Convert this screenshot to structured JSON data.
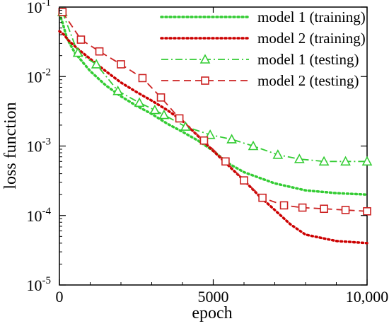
{
  "chart_data": {
    "type": "line",
    "xlabel": "epoch",
    "ylabel": "loss function",
    "xlim": [
      0,
      10000
    ],
    "ylim": [
      1e-05,
      0.1
    ],
    "yscale": "log",
    "x_ticks": [
      {
        "value": 0,
        "label": "0"
      },
      {
        "value": 5000,
        "label": "5000"
      },
      {
        "value": 10000,
        "label": "10,000"
      }
    ],
    "y_ticks": [
      {
        "value": 1e-05,
        "base": "10",
        "exp": "-5"
      },
      {
        "value": 0.0001,
        "base": "10",
        "exp": "-4"
      },
      {
        "value": 0.001,
        "base": "10",
        "exp": "-3"
      },
      {
        "value": 0.01,
        "base": "10",
        "exp": "-2"
      },
      {
        "value": 0.1,
        "base": "10",
        "exp": "-1"
      }
    ],
    "grid": false,
    "legend_position": "top-right",
    "series": [
      {
        "name": "model 1 (training)",
        "color": "#33cc33",
        "style": "dotted",
        "marker": "none",
        "x": [
          0,
          100,
          250,
          500,
          1000,
          1500,
          2000,
          2500,
          3000,
          3500,
          4000,
          4500,
          5000,
          5500,
          6000,
          7000,
          8000,
          9000,
          10000
        ],
        "y": [
          0.08,
          0.06,
          0.035,
          0.022,
          0.012,
          0.0075,
          0.0052,
          0.0038,
          0.0029,
          0.0021,
          0.0016,
          0.0012,
          0.00085,
          0.00056,
          0.00042,
          0.00029,
          0.00023,
          0.00021,
          0.0002
        ]
      },
      {
        "name": "model 2 (training)",
        "color": "#cc0000",
        "style": "dotted",
        "marker": "none",
        "x": [
          0,
          150,
          300,
          600,
          1000,
          1500,
          2000,
          2500,
          3000,
          3500,
          4000,
          4500,
          5000,
          5500,
          6000,
          6500,
          7000,
          7500,
          8000,
          9000,
          10000
        ],
        "y": [
          0.045,
          0.04,
          0.033,
          0.025,
          0.018,
          0.012,
          0.0082,
          0.006,
          0.0045,
          0.0033,
          0.0023,
          0.0014,
          0.00085,
          0.00052,
          0.00032,
          0.00019,
          0.00012,
          7.5e-05,
          5.3e-05,
          4.3e-05,
          4e-05
        ]
      },
      {
        "name": "model 1 (testing)",
        "color": "#33cc33",
        "style": "dash-dot",
        "marker": "triangle",
        "x": [
          100,
          600,
          1200,
          1900,
          2600,
          3100,
          3400,
          4100,
          4900,
          5600,
          6300,
          7100,
          7800,
          8600,
          9300,
          10000
        ],
        "y": [
          0.085,
          0.022,
          0.015,
          0.0062,
          0.0042,
          0.0033,
          0.0028,
          0.0019,
          0.00145,
          0.00125,
          0.001,
          0.00075,
          0.00065,
          0.0006,
          0.0006,
          0.0006
        ]
      },
      {
        "name": "model 2 (testing)",
        "color": "#cc2222",
        "style": "dashed",
        "marker": "square",
        "x": [
          100,
          700,
          1300,
          2000,
          2700,
          3300,
          3900,
          4700,
          5400,
          6000,
          6600,
          7300,
          7900,
          8600,
          9300,
          10000
        ],
        "y": [
          0.085,
          0.034,
          0.023,
          0.015,
          0.0095,
          0.005,
          0.0025,
          0.0012,
          0.0006,
          0.00032,
          0.00018,
          0.00014,
          0.00013,
          0.000125,
          0.00012,
          0.000115
        ]
      }
    ]
  }
}
